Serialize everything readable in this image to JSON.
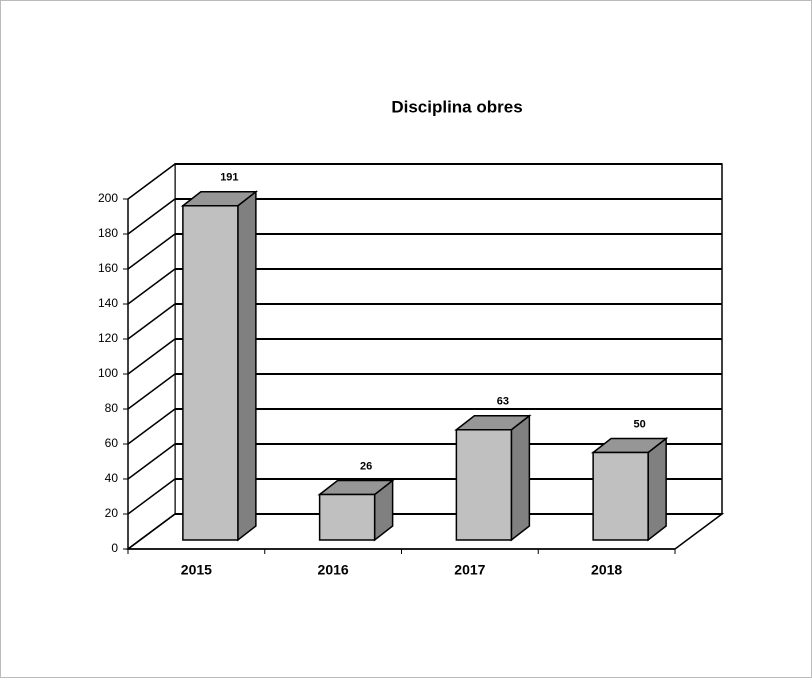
{
  "chart_data": {
    "type": "bar",
    "title": "Disciplina obres",
    "categories": [
      "2015",
      "2016",
      "2017",
      "2018"
    ],
    "values": [
      191,
      26,
      63,
      50
    ],
    "color": "#c0c0c0",
    "ylim": [
      0,
      200
    ],
    "yticks": [
      0,
      20,
      40,
      60,
      80,
      100,
      120,
      140,
      160,
      180,
      200
    ],
    "grid": true
  }
}
